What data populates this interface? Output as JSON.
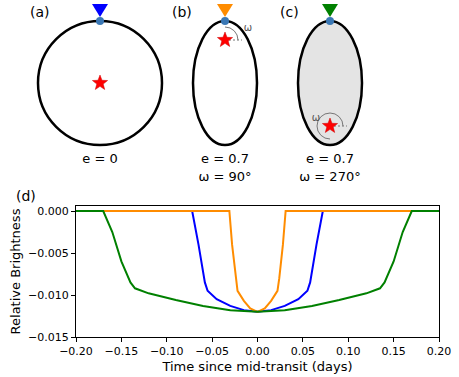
{
  "diagram": {
    "panels": [
      {
        "letter": "(a)",
        "color": "#0000ff",
        "labels": [
          "e = 0"
        ]
      },
      {
        "letter": "(b)",
        "color": "#ff8c00",
        "labels": [
          "e = 0.7",
          "ω = 90°"
        ],
        "angle_mark": "ω"
      },
      {
        "letter": "(c)",
        "color": "#008000",
        "labels": [
          "e = 0.7",
          "ω = 270°"
        ],
        "angle_mark": "ω"
      }
    ]
  },
  "chart_data": {
    "type": "line",
    "panel_label": "(d)",
    "x_label": "Time since mid-transit (days)",
    "y_label": "Relative Brightness",
    "xlim": [
      -0.2,
      0.2
    ],
    "xticks": [
      {
        "value": -0.2,
        "label": "−0.20"
      },
      {
        "value": -0.15,
        "label": "−0.15"
      },
      {
        "value": -0.1,
        "label": "−0.10"
      },
      {
        "value": -0.05,
        "label": "−0.05"
      },
      {
        "value": 0,
        "label": "0.00"
      },
      {
        "value": 0.05,
        "label": "0.05"
      },
      {
        "value": 0.1,
        "label": "0.10"
      },
      {
        "value": 0.15,
        "label": "0.15"
      },
      {
        "value": 0.2,
        "label": "0.20"
      }
    ],
    "ylim": [
      -0.015,
      0.0006
    ],
    "yticks": [
      {
        "value": 0,
        "label": "0.000"
      },
      {
        "value": -0.005,
        "label": "−0.005"
      },
      {
        "value": -0.01,
        "label": "−0.010"
      },
      {
        "value": -0.015,
        "label": "−0.015"
      }
    ],
    "grid": false,
    "series": [
      {
        "color": "#0000ff",
        "x": [
          -0.2,
          -0.072,
          -0.065,
          -0.058,
          -0.055,
          -0.045,
          -0.03,
          -0.015,
          0,
          0.015,
          0.03,
          0.045,
          0.055,
          0.058,
          0.065,
          0.072,
          0.2
        ],
        "values": [
          0,
          0,
          -0.004,
          -0.0085,
          -0.0095,
          -0.0105,
          -0.0113,
          -0.0118,
          -0.012,
          -0.0118,
          -0.0113,
          -0.0105,
          -0.0095,
          -0.0085,
          -0.004,
          0,
          0
        ]
      },
      {
        "color": "#ff8c00",
        "x": [
          -0.2,
          -0.031,
          -0.028,
          -0.024,
          -0.022,
          -0.015,
          -0.008,
          0,
          0.008,
          0.015,
          0.022,
          0.024,
          0.028,
          0.031,
          0.2
        ],
        "values": [
          0,
          0,
          -0.004,
          -0.008,
          -0.0095,
          -0.0107,
          -0.0116,
          -0.012,
          -0.0116,
          -0.0107,
          -0.0095,
          -0.008,
          -0.004,
          0,
          0
        ]
      },
      {
        "color": "#008000",
        "x": [
          -0.2,
          -0.17,
          -0.16,
          -0.15,
          -0.14,
          -0.135,
          -0.12,
          -0.09,
          -0.06,
          -0.03,
          0,
          0.03,
          0.06,
          0.09,
          0.12,
          0.135,
          0.14,
          0.15,
          0.16,
          0.17,
          0.2
        ],
        "values": [
          0,
          0,
          -0.0025,
          -0.006,
          -0.0085,
          -0.0092,
          -0.0098,
          -0.0106,
          -0.0113,
          -0.0118,
          -0.012,
          -0.0118,
          -0.0113,
          -0.0106,
          -0.0098,
          -0.0092,
          -0.0085,
          -0.006,
          -0.0025,
          0,
          0
        ]
      }
    ]
  }
}
